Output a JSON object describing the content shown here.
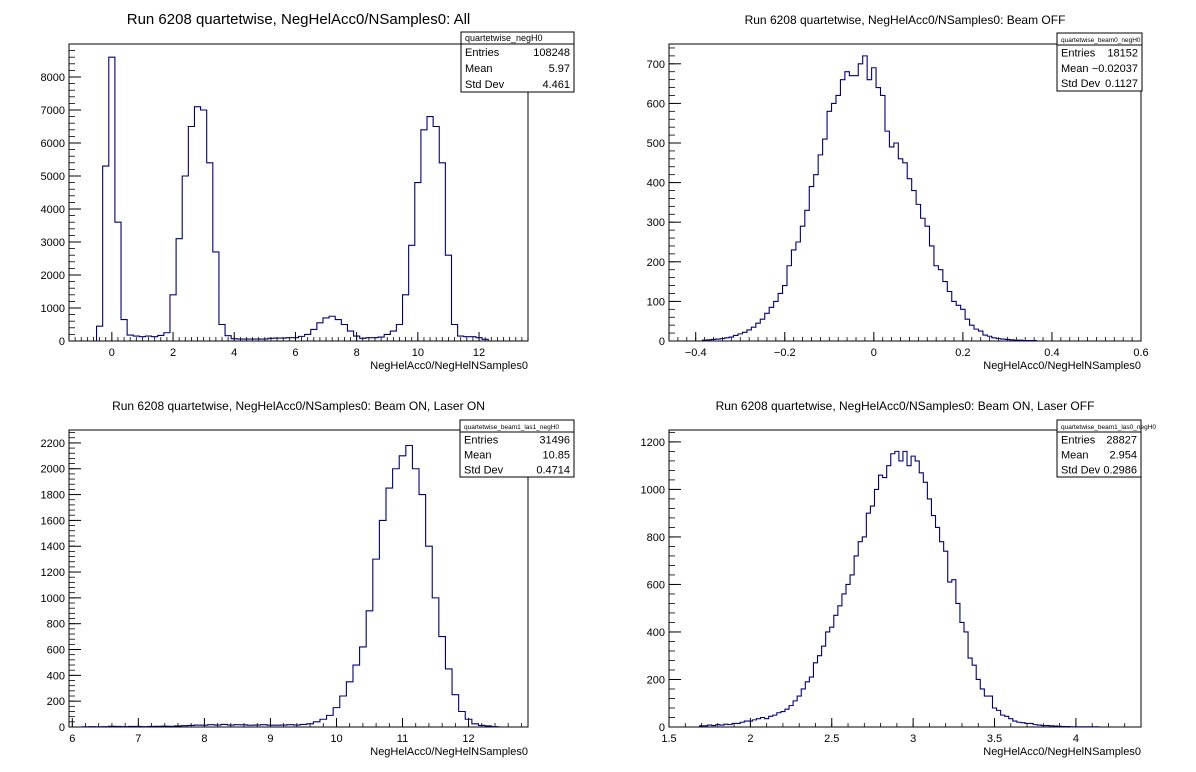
{
  "chart_data": [
    {
      "type": "histogram",
      "title": "Run 6208 quartetwise, NegHelAcc0/NSamples0: All",
      "xlabel": "NegHelAcc0/NegHelNSamples0",
      "ylabel": "",
      "xlim": [
        -1.4,
        13.6
      ],
      "ylim": [
        0,
        9000
      ],
      "xticks": [
        0,
        2,
        4,
        6,
        8,
        10,
        12
      ],
      "yticks": [
        0,
        1000,
        2000,
        3000,
        4000,
        5000,
        6000,
        7000,
        8000
      ],
      "bin_width": 0.2,
      "x": [
        -0.4,
        -0.2,
        0.0,
        0.2,
        0.4,
        0.6,
        0.8,
        1.0,
        1.2,
        1.4,
        1.6,
        1.8,
        2.0,
        2.2,
        2.4,
        2.6,
        2.8,
        3.0,
        3.2,
        3.4,
        3.6,
        3.8,
        4.0,
        4.2,
        4.4,
        4.6,
        4.8,
        5.0,
        5.2,
        5.4,
        5.6,
        5.8,
        6.0,
        6.2,
        6.4,
        6.6,
        6.8,
        7.0,
        7.2,
        7.4,
        7.6,
        7.8,
        8.0,
        8.2,
        8.4,
        8.6,
        8.8,
        9.0,
        9.2,
        9.4,
        9.6,
        9.8,
        10.0,
        10.2,
        10.4,
        10.6,
        10.8,
        11.0,
        11.2,
        11.4,
        11.6,
        11.8,
        12.0,
        12.2
      ],
      "values": [
        450,
        5300,
        8600,
        3600,
        650,
        180,
        150,
        130,
        150,
        130,
        170,
        250,
        1400,
        3100,
        5000,
        6500,
        7100,
        7000,
        5400,
        2700,
        500,
        160,
        70,
        60,
        60,
        60,
        60,
        60,
        80,
        90,
        90,
        100,
        100,
        140,
        200,
        350,
        550,
        700,
        750,
        650,
        500,
        300,
        150,
        80,
        100,
        100,
        120,
        200,
        300,
        500,
        1400,
        2900,
        4800,
        6400,
        6800,
        6500,
        5400,
        2600,
        500,
        150,
        130,
        130,
        100,
        50
      ],
      "stats": {
        "name": "quartetwise_negH0",
        "rows": [
          [
            "Entries",
            "108248"
          ],
          [
            "Mean",
            "5.97"
          ],
          [
            "Std Dev",
            "4.461"
          ]
        ]
      }
    },
    {
      "type": "histogram",
      "title": "Run 6208 quartetwise, NegHelAcc0/NSamples0: Beam OFF",
      "xlabel": "NegHelAcc0/NegHelNSamples0",
      "ylabel": "",
      "xlim": [
        -0.46,
        0.6
      ],
      "ylim": [
        0,
        750
      ],
      "xticks": [
        -0.4,
        -0.2,
        0,
        0.2,
        0.4,
        0.6
      ],
      "yticks": [
        0,
        100,
        200,
        300,
        400,
        500,
        600,
        700
      ],
      "bin_width": 0.01,
      "x": [
        -0.38,
        -0.37,
        -0.36,
        -0.35,
        -0.34,
        -0.33,
        -0.32,
        -0.31,
        -0.3,
        -0.29,
        -0.28,
        -0.27,
        -0.26,
        -0.25,
        -0.24,
        -0.23,
        -0.22,
        -0.21,
        -0.2,
        -0.19,
        -0.18,
        -0.17,
        -0.16,
        -0.15,
        -0.14,
        -0.13,
        -0.12,
        -0.11,
        -0.1,
        -0.09,
        -0.08,
        -0.07,
        -0.06,
        -0.05,
        -0.04,
        -0.03,
        -0.02,
        -0.01,
        0.0,
        0.01,
        0.02,
        0.03,
        0.04,
        0.05,
        0.06,
        0.07,
        0.08,
        0.09,
        0.1,
        0.11,
        0.12,
        0.13,
        0.14,
        0.15,
        0.16,
        0.17,
        0.18,
        0.19,
        0.2,
        0.21,
        0.22,
        0.23,
        0.24,
        0.25,
        0.26,
        0.27,
        0.28,
        0.29,
        0.3,
        0.31,
        0.32,
        0.33,
        0.34,
        0.35,
        0.36
      ],
      "values": [
        2,
        3,
        4,
        5,
        6,
        8,
        10,
        14,
        18,
        22,
        28,
        35,
        45,
        55,
        70,
        85,
        100,
        120,
        140,
        190,
        230,
        250,
        290,
        330,
        390,
        420,
        470,
        510,
        580,
        600,
        620,
        660,
        680,
        670,
        670,
        700,
        720,
        660,
        690,
        640,
        620,
        530,
        490,
        500,
        460,
        450,
        410,
        380,
        345,
        310,
        290,
        240,
        190,
        180,
        150,
        125,
        100,
        90,
        80,
        55,
        40,
        30,
        25,
        15,
        12,
        8,
        6,
        5,
        4,
        3,
        2,
        2,
        1,
        1,
        1
      ],
      "stats": {
        "name": "quartetwise_beam0_negH0",
        "rows": [
          [
            "Entries",
            "18152"
          ],
          [
            "Mean",
            "−0.02037"
          ],
          [
            "Std Dev",
            "0.1127"
          ]
        ]
      }
    },
    {
      "type": "histogram",
      "title": "Run 6208 quartetwise, NegHelAcc0/NSamples0: Beam ON, Laser ON",
      "xlabel": "NegHelAcc0/NegHelNSamples0",
      "ylabel": "",
      "xlim": [
        5.95,
        12.9
      ],
      "ylim": [
        0,
        2300
      ],
      "xticks": [
        6,
        7,
        8,
        9,
        10,
        11,
        12
      ],
      "yticks": [
        0,
        200,
        400,
        600,
        800,
        1000,
        1200,
        1400,
        1600,
        1800,
        2000,
        2200
      ],
      "bin_width": 0.1,
      "x": [
        6.0,
        6.1,
        6.2,
        6.3,
        6.4,
        6.5,
        6.6,
        6.7,
        6.8,
        6.9,
        7.0,
        7.1,
        7.2,
        7.3,
        7.4,
        7.5,
        7.6,
        7.7,
        7.8,
        7.9,
        8.0,
        8.1,
        8.2,
        8.3,
        8.4,
        8.5,
        8.6,
        8.7,
        8.8,
        8.9,
        9.0,
        9.1,
        9.2,
        9.3,
        9.4,
        9.5,
        9.6,
        9.7,
        9.8,
        9.9,
        10.0,
        10.1,
        10.2,
        10.3,
        10.4,
        10.5,
        10.6,
        10.7,
        10.8,
        10.9,
        11.0,
        11.1,
        11.2,
        11.3,
        11.4,
        11.5,
        11.6,
        11.7,
        11.8,
        11.9,
        12.0,
        12.1,
        12.2,
        12.3,
        12.4
      ],
      "values": [
        0,
        0,
        2,
        3,
        2,
        3,
        5,
        4,
        3,
        4,
        4,
        3,
        4,
        5,
        6,
        5,
        8,
        10,
        12,
        15,
        14,
        18,
        15,
        20,
        15,
        18,
        17,
        14,
        15,
        18,
        14,
        14,
        15,
        18,
        15,
        20,
        25,
        40,
        60,
        90,
        150,
        240,
        350,
        480,
        620,
        900,
        1300,
        1600,
        1850,
        2000,
        2100,
        2180,
        2000,
        1800,
        1400,
        1000,
        700,
        450,
        250,
        120,
        60,
        25,
        12,
        8,
        3
      ],
      "stats": {
        "name": "quartetwise_beam1_las1_negH0",
        "rows": [
          [
            "Entries",
            "31496"
          ],
          [
            "Mean",
            "10.85"
          ],
          [
            "Std Dev",
            "0.4714"
          ]
        ]
      }
    },
    {
      "type": "histogram",
      "title": "Run 6208 quartetwise, NegHelAcc0/NSamples0: Beam ON, Laser OFF",
      "xlabel": "NegHelAcc0/NegHelNSamples0",
      "ylabel": "",
      "xlim": [
        1.5,
        4.4
      ],
      "ylim": [
        0,
        1250
      ],
      "xticks": [
        1.5,
        2,
        2.5,
        3,
        3.5,
        4
      ],
      "yticks": [
        0,
        200,
        400,
        600,
        800,
        1000,
        1200
      ],
      "bin_width": 0.025,
      "x": [
        1.7,
        1.725,
        1.75,
        1.775,
        1.8,
        1.825,
        1.85,
        1.875,
        1.9,
        1.925,
        1.95,
        1.975,
        2.0,
        2.025,
        2.05,
        2.075,
        2.1,
        2.125,
        2.15,
        2.175,
        2.2,
        2.225,
        2.25,
        2.275,
        2.3,
        2.325,
        2.35,
        2.375,
        2.4,
        2.425,
        2.45,
        2.475,
        2.5,
        2.525,
        2.55,
        2.575,
        2.6,
        2.625,
        2.65,
        2.675,
        2.7,
        2.725,
        2.75,
        2.775,
        2.8,
        2.825,
        2.85,
        2.875,
        2.9,
        2.925,
        2.95,
        2.975,
        3.0,
        3.025,
        3.05,
        3.075,
        3.1,
        3.125,
        3.15,
        3.175,
        3.2,
        3.225,
        3.25,
        3.275,
        3.3,
        3.325,
        3.35,
        3.375,
        3.4,
        3.425,
        3.45,
        3.475,
        3.5,
        3.525,
        3.55,
        3.575,
        3.6,
        3.625,
        3.65,
        3.675,
        3.7,
        3.725,
        3.75,
        3.775,
        3.8,
        3.825,
        3.85,
        3.875,
        3.9,
        3.925,
        3.95,
        3.975,
        4.0,
        4.025,
        4.05,
        4.075,
        4.1,
        4.125
      ],
      "values": [
        5,
        5,
        8,
        6,
        10,
        8,
        12,
        10,
        15,
        15,
        20,
        25,
        25,
        30,
        35,
        40,
        35,
        45,
        50,
        60,
        65,
        75,
        90,
        110,
        130,
        160,
        190,
        210,
        270,
        300,
        340,
        400,
        420,
        470,
        510,
        560,
        600,
        640,
        720,
        780,
        800,
        900,
        930,
        1000,
        1060,
        1050,
        1100,
        1150,
        1160,
        1120,
        1160,
        1100,
        1140,
        1120,
        1070,
        1030,
        960,
        890,
        840,
        780,
        740,
        610,
        620,
        520,
        440,
        400,
        290,
        260,
        200,
        160,
        130,
        130,
        80,
        70,
        50,
        45,
        35,
        25,
        20,
        18,
        15,
        15,
        10,
        8,
        6,
        6,
        5,
        4,
        3,
        2,
        2,
        1,
        1,
        1,
        1,
        1,
        1,
        1
      ],
      "stats": {
        "name": "quartetwise_beam1_las0_negH0",
        "rows": [
          [
            "Entries",
            "28827"
          ],
          [
            "Mean",
            "2.954"
          ],
          [
            "Std Dev",
            "0.2986"
          ]
        ]
      }
    }
  ]
}
